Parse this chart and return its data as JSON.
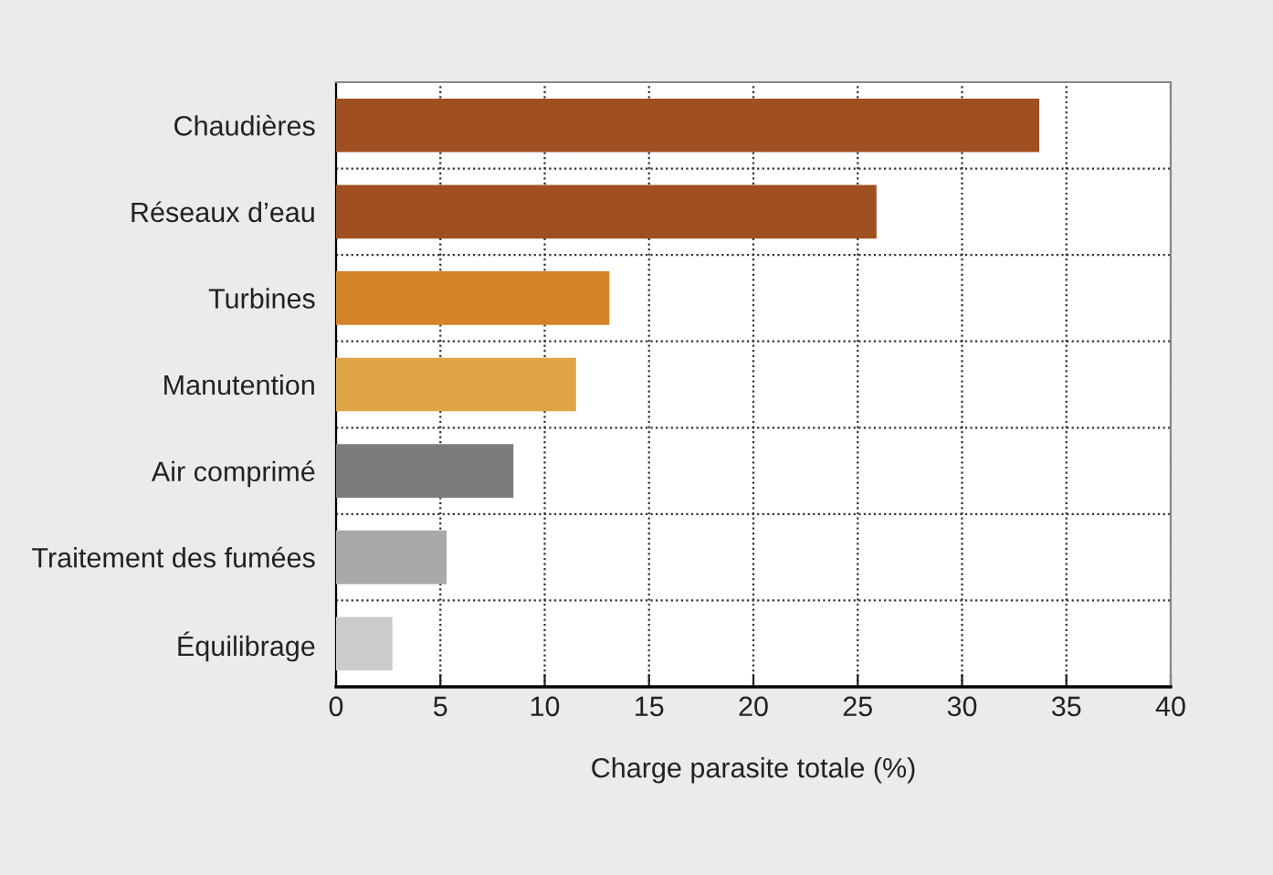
{
  "chart_data": {
    "type": "bar",
    "orientation": "horizontal",
    "xlabel": "Charge parasite totale (%)",
    "categories": [
      "Chaudières",
      "Réseaux d’eau",
      "Turbines",
      "Manutention",
      "Air comprimé",
      "Traitement des fumées",
      "Équilibrage"
    ],
    "values": [
      33.7,
      25.9,
      13.1,
      11.5,
      8.5,
      5.3,
      2.7
    ],
    "colors": [
      "#a05020",
      "#a05020",
      "#d38426",
      "#dfa444",
      "#7c7c7c",
      "#a9a9a9",
      "#cbcbcb"
    ],
    "xlim": [
      0,
      40
    ],
    "xticks": [
      0,
      5,
      10,
      15,
      20,
      25,
      30,
      35,
      40
    ],
    "grid": true
  }
}
